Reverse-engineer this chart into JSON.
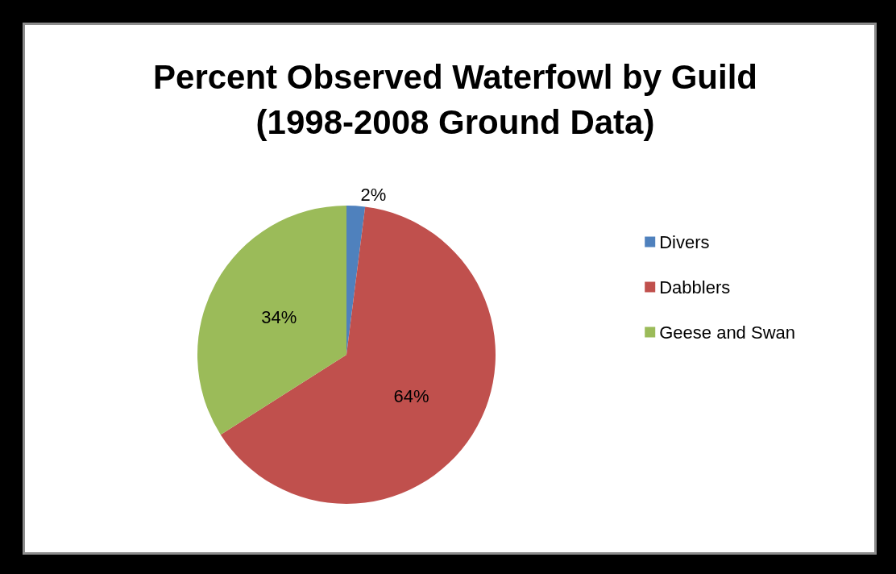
{
  "chart_data": {
    "type": "pie",
    "title": "Percent Observed Waterfowl by Guild\n(1998-2008 Ground Data)",
    "categories": [
      "Divers",
      "Dabblers",
      "Geese and Swan"
    ],
    "values": [
      2,
      64,
      34
    ],
    "colors": [
      "#4f81bd",
      "#c0504d",
      "#9bbb59"
    ],
    "value_labels": [
      "2%",
      "64%",
      "34%"
    ],
    "legend": "right"
  }
}
